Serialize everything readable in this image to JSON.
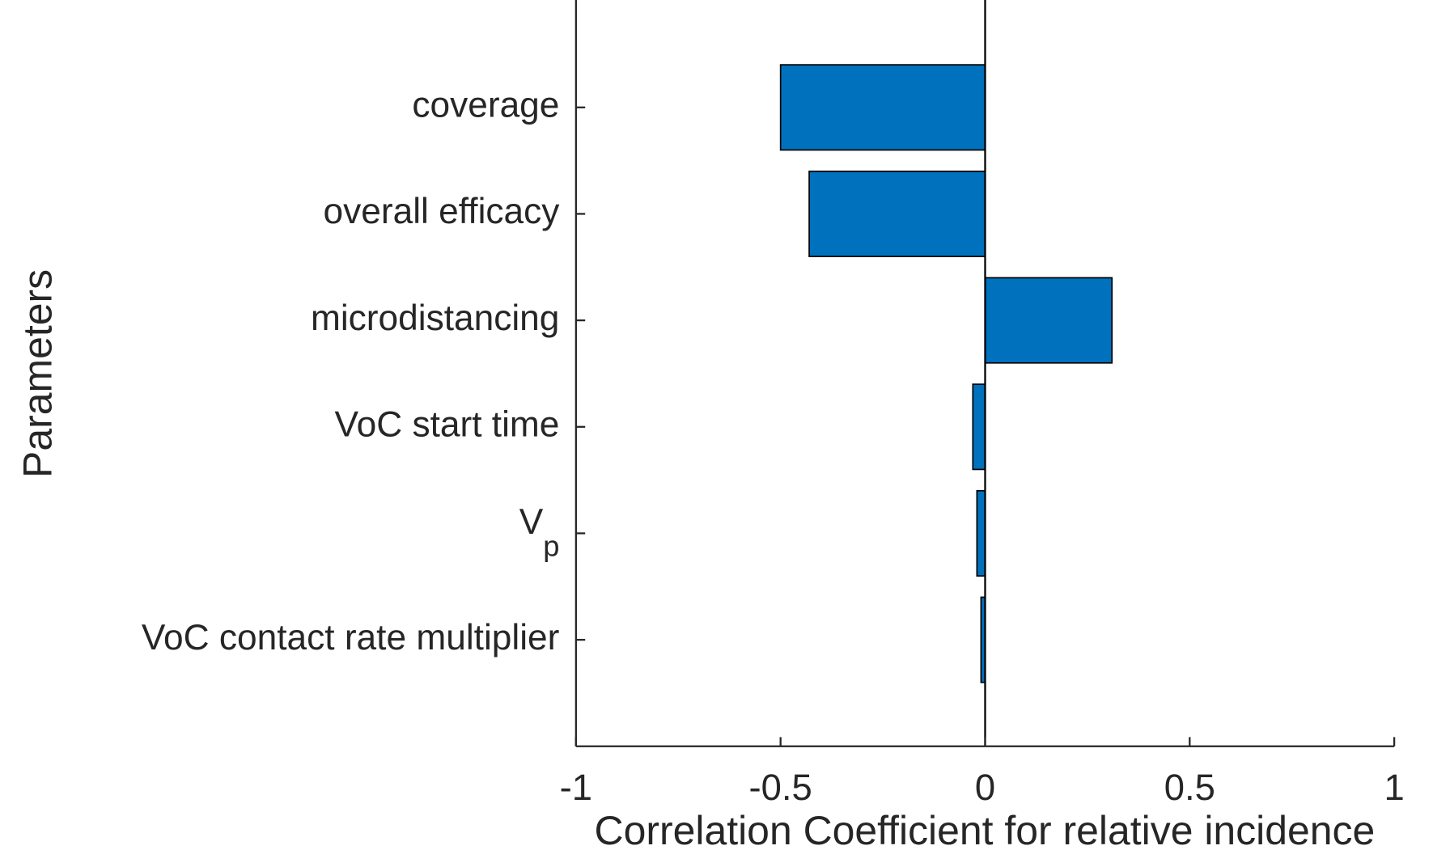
{
  "chart_data": {
    "type": "barh",
    "xlabel": "Correlation Coefficient for relative incidence",
    "ylabel": "Parameters",
    "categories": [
      "coverage",
      "overall efficacy",
      "microdistancing",
      "VoC start time",
      {
        "label": "V",
        "subscript": "p"
      },
      "VoC contact rate multiplier"
    ],
    "values": [
      -0.5,
      -0.43,
      0.31,
      -0.03,
      -0.02,
      -0.01
    ],
    "color": "#0072bd",
    "xlim": [
      -1,
      1
    ],
    "xticks": [
      -1,
      -0.5,
      0,
      0.5,
      1
    ]
  }
}
